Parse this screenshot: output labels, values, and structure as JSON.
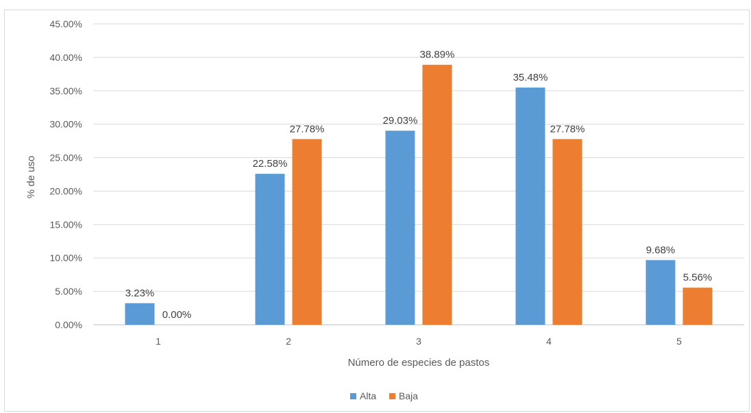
{
  "chart_data": {
    "type": "bar",
    "title": "",
    "xlabel": "Número de especies de pastos",
    "ylabel": "% de uso",
    "categories": [
      "1",
      "2",
      "3",
      "4",
      "5"
    ],
    "y_ticks": [
      "0.00%",
      "5.00%",
      "10.00%",
      "15.00%",
      "20.00%",
      "25.00%",
      "30.00%",
      "35.00%",
      "40.00%",
      "45.00%"
    ],
    "ylim": [
      0,
      45
    ],
    "grid": true,
    "legend_position": "bottom",
    "series": [
      {
        "name": "Alta",
        "color": "#5b9bd5",
        "values": [
          3.23,
          22.58,
          29.03,
          35.48,
          9.68
        ],
        "labels": [
          "3.23%",
          "22.58%",
          "29.03%",
          "35.48%",
          "9.68%"
        ]
      },
      {
        "name": "Baja",
        "color": "#ed7d31",
        "values": [
          0.0,
          27.78,
          38.89,
          27.78,
          5.56
        ],
        "labels": [
          "0.00%",
          "27.78%",
          "38.89%",
          "27.78%",
          "5.56%"
        ]
      }
    ]
  }
}
